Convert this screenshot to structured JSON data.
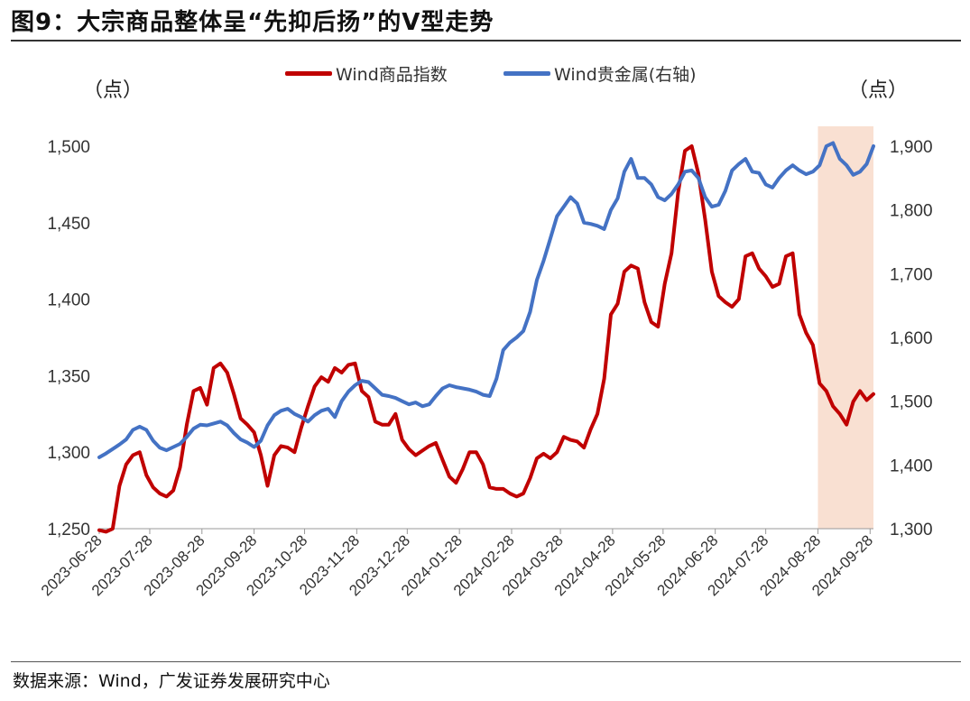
{
  "title": "图9：大宗商品整体呈“先抑后扬”的V型走势",
  "source": "数据来源：Wind，广发证券发展研究中心",
  "chart_data": {
    "type": "line",
    "title": "图9：大宗商品整体呈“先抑后扬”的V型走势",
    "left_unit": "（点）",
    "right_unit": "（点）",
    "x_ticks": [
      "2023-06-28",
      "2023-07-28",
      "2023-08-28",
      "2023-09-28",
      "2023-10-28",
      "2023-11-28",
      "2023-12-28",
      "2024-01-28",
      "2024-02-28",
      "2024-03-28",
      "2024-04-28",
      "2024-05-28",
      "2024-06-28",
      "2024-07-28",
      "2024-08-28",
      "2024-09-28"
    ],
    "y_left": {
      "ticks": [
        "1,250",
        "1,300",
        "1,350",
        "1,400",
        "1,450",
        "1,500"
      ],
      "range": [
        1250,
        1500
      ]
    },
    "y_right": {
      "ticks": [
        "1,300",
        "1,400",
        "1,500",
        "1,600",
        "1,700",
        "1,800",
        "1,900"
      ],
      "range": [
        1300,
        1900
      ]
    },
    "legend_placement": "top-center",
    "grid": false,
    "highlight": {
      "from": "2024-08-28",
      "to": "2024-09-30",
      "color": "#f9e0d2"
    },
    "series": [
      {
        "name": "Wind商品指数",
        "axis": "left",
        "color": "#c00000",
        "x": [
          "2023-06-28",
          "2023-07-02",
          "2023-07-06",
          "2023-07-10",
          "2023-07-14",
          "2023-07-18",
          "2023-07-22",
          "2023-07-26",
          "2023-07-30",
          "2023-08-03",
          "2023-08-07",
          "2023-08-11",
          "2023-08-15",
          "2023-08-19",
          "2023-08-23",
          "2023-08-27",
          "2023-08-31",
          "2023-09-04",
          "2023-09-08",
          "2023-09-12",
          "2023-09-16",
          "2023-09-20",
          "2023-09-24",
          "2023-09-28",
          "2023-10-02",
          "2023-10-06",
          "2023-10-10",
          "2023-10-14",
          "2023-10-18",
          "2023-10-22",
          "2023-10-26",
          "2023-10-30",
          "2023-11-03",
          "2023-11-07",
          "2023-11-11",
          "2023-11-15",
          "2023-11-19",
          "2023-11-23",
          "2023-11-27",
          "2023-12-01",
          "2023-12-05",
          "2023-12-09",
          "2023-12-13",
          "2023-12-17",
          "2023-12-21",
          "2023-12-25",
          "2023-12-29",
          "2024-01-02",
          "2024-01-06",
          "2024-01-10",
          "2024-01-14",
          "2024-01-18",
          "2024-01-22",
          "2024-01-26",
          "2024-01-30",
          "2024-02-03",
          "2024-02-07",
          "2024-02-11",
          "2024-02-15",
          "2024-02-19",
          "2024-02-23",
          "2024-02-27",
          "2024-03-02",
          "2024-03-06",
          "2024-03-10",
          "2024-03-14",
          "2024-03-18",
          "2024-03-22",
          "2024-03-26",
          "2024-03-30",
          "2024-04-03",
          "2024-04-07",
          "2024-04-11",
          "2024-04-15",
          "2024-04-19",
          "2024-04-23",
          "2024-04-27",
          "2024-05-01",
          "2024-05-05",
          "2024-05-09",
          "2024-05-13",
          "2024-05-17",
          "2024-05-21",
          "2024-05-25",
          "2024-05-29",
          "2024-06-02",
          "2024-06-06",
          "2024-06-10",
          "2024-06-14",
          "2024-06-18",
          "2024-06-22",
          "2024-06-26",
          "2024-06-30",
          "2024-07-04",
          "2024-07-08",
          "2024-07-12",
          "2024-07-16",
          "2024-07-20",
          "2024-07-24",
          "2024-07-28",
          "2024-08-01",
          "2024-08-05",
          "2024-08-09",
          "2024-08-13",
          "2024-08-17",
          "2024-08-21",
          "2024-08-25",
          "2024-08-29",
          "2024-09-02",
          "2024-09-06",
          "2024-09-10",
          "2024-09-14",
          "2024-09-18",
          "2024-09-22",
          "2024-09-26",
          "2024-09-30"
        ],
        "values": [
          1249,
          1248,
          1250,
          1278,
          1292,
          1298,
          1300,
          1285,
          1277,
          1273,
          1271,
          1275,
          1290,
          1318,
          1340,
          1342,
          1331,
          1355,
          1358,
          1352,
          1338,
          1322,
          1318,
          1313,
          1298,
          1278,
          1298,
          1304,
          1303,
          1300,
          1316,
          1330,
          1343,
          1349,
          1346,
          1355,
          1352,
          1357,
          1358,
          1340,
          1336,
          1320,
          1318,
          1318,
          1325,
          1308,
          1302,
          1298,
          1301,
          1304,
          1306,
          1295,
          1284,
          1280,
          1289,
          1300,
          1300,
          1292,
          1277,
          1276,
          1276,
          1273,
          1271,
          1273,
          1283,
          1296,
          1299,
          1296,
          1300,
          1310,
          1308,
          1307,
          1303,
          1315,
          1325,
          1348,
          1390,
          1397,
          1418,
          1422,
          1420,
          1398,
          1385,
          1382,
          1410,
          1430,
          1470,
          1497,
          1500,
          1482,
          1452,
          1418,
          1402,
          1398,
          1395,
          1400,
          1428,
          1430,
          1420,
          1415,
          1408,
          1410,
          1428,
          1430,
          1390,
          1378,
          1370,
          1345,
          1340,
          1330,
          1325,
          1318,
          1333,
          1340,
          1334,
          1338
        ]
      },
      {
        "name": "Wind贵金属(右轴)",
        "axis": "right",
        "color": "#4472c4",
        "x": [
          "2023-06-28",
          "2023-07-02",
          "2023-07-06",
          "2023-07-10",
          "2023-07-14",
          "2023-07-18",
          "2023-07-22",
          "2023-07-26",
          "2023-07-30",
          "2023-08-03",
          "2023-08-07",
          "2023-08-11",
          "2023-08-15",
          "2023-08-19",
          "2023-08-23",
          "2023-08-27",
          "2023-08-31",
          "2023-09-04",
          "2023-09-08",
          "2023-09-12",
          "2023-09-16",
          "2023-09-20",
          "2023-09-24",
          "2023-09-28",
          "2023-10-02",
          "2023-10-06",
          "2023-10-10",
          "2023-10-14",
          "2023-10-18",
          "2023-10-22",
          "2023-10-26",
          "2023-10-30",
          "2023-11-03",
          "2023-11-07",
          "2023-11-11",
          "2023-11-15",
          "2023-11-19",
          "2023-11-23",
          "2023-11-27",
          "2023-12-01",
          "2023-12-05",
          "2023-12-09",
          "2023-12-13",
          "2023-12-17",
          "2023-12-21",
          "2023-12-25",
          "2023-12-29",
          "2024-01-02",
          "2024-01-06",
          "2024-01-10",
          "2024-01-14",
          "2024-01-18",
          "2024-01-22",
          "2024-01-26",
          "2024-01-30",
          "2024-02-03",
          "2024-02-07",
          "2024-02-11",
          "2024-02-15",
          "2024-02-19",
          "2024-02-23",
          "2024-02-27",
          "2024-03-02",
          "2024-03-06",
          "2024-03-10",
          "2024-03-14",
          "2024-03-18",
          "2024-03-22",
          "2024-03-26",
          "2024-03-30",
          "2024-04-03",
          "2024-04-07",
          "2024-04-11",
          "2024-04-15",
          "2024-04-19",
          "2024-04-23",
          "2024-04-27",
          "2024-05-01",
          "2024-05-05",
          "2024-05-09",
          "2024-05-13",
          "2024-05-17",
          "2024-05-21",
          "2024-05-25",
          "2024-05-29",
          "2024-06-02",
          "2024-06-06",
          "2024-06-10",
          "2024-06-14",
          "2024-06-18",
          "2024-06-22",
          "2024-06-26",
          "2024-06-30",
          "2024-07-04",
          "2024-07-08",
          "2024-07-12",
          "2024-07-16",
          "2024-07-20",
          "2024-07-24",
          "2024-07-28",
          "2024-08-01",
          "2024-08-05",
          "2024-08-09",
          "2024-08-13",
          "2024-08-17",
          "2024-08-21",
          "2024-08-25",
          "2024-08-29",
          "2024-09-02",
          "2024-09-06",
          "2024-09-10",
          "2024-09-14",
          "2024-09-18",
          "2024-09-22",
          "2024-09-26",
          "2024-09-30"
        ],
        "values": [
          1412,
          1418,
          1425,
          1432,
          1440,
          1455,
          1460,
          1455,
          1438,
          1427,
          1423,
          1428,
          1433,
          1444,
          1457,
          1463,
          1462,
          1465,
          1468,
          1462,
          1450,
          1440,
          1435,
          1428,
          1438,
          1462,
          1478,
          1485,
          1488,
          1480,
          1475,
          1468,
          1478,
          1485,
          1488,
          1475,
          1500,
          1515,
          1525,
          1532,
          1530,
          1520,
          1510,
          1508,
          1505,
          1500,
          1495,
          1498,
          1492,
          1495,
          1508,
          1520,
          1525,
          1522,
          1520,
          1518,
          1515,
          1510,
          1508,
          1535,
          1580,
          1592,
          1600,
          1610,
          1640,
          1690,
          1720,
          1755,
          1790,
          1805,
          1820,
          1810,
          1780,
          1778,
          1775,
          1770,
          1800,
          1818,
          1860,
          1880,
          1850,
          1850,
          1840,
          1820,
          1815,
          1825,
          1840,
          1860,
          1862,
          1850,
          1820,
          1805,
          1808,
          1830,
          1862,
          1872,
          1880,
          1860,
          1858,
          1840,
          1835,
          1850,
          1862,
          1870,
          1862,
          1856,
          1860,
          1870,
          1900,
          1905,
          1880,
          1870,
          1855,
          1860,
          1872,
          1900
        ]
      }
    ]
  }
}
